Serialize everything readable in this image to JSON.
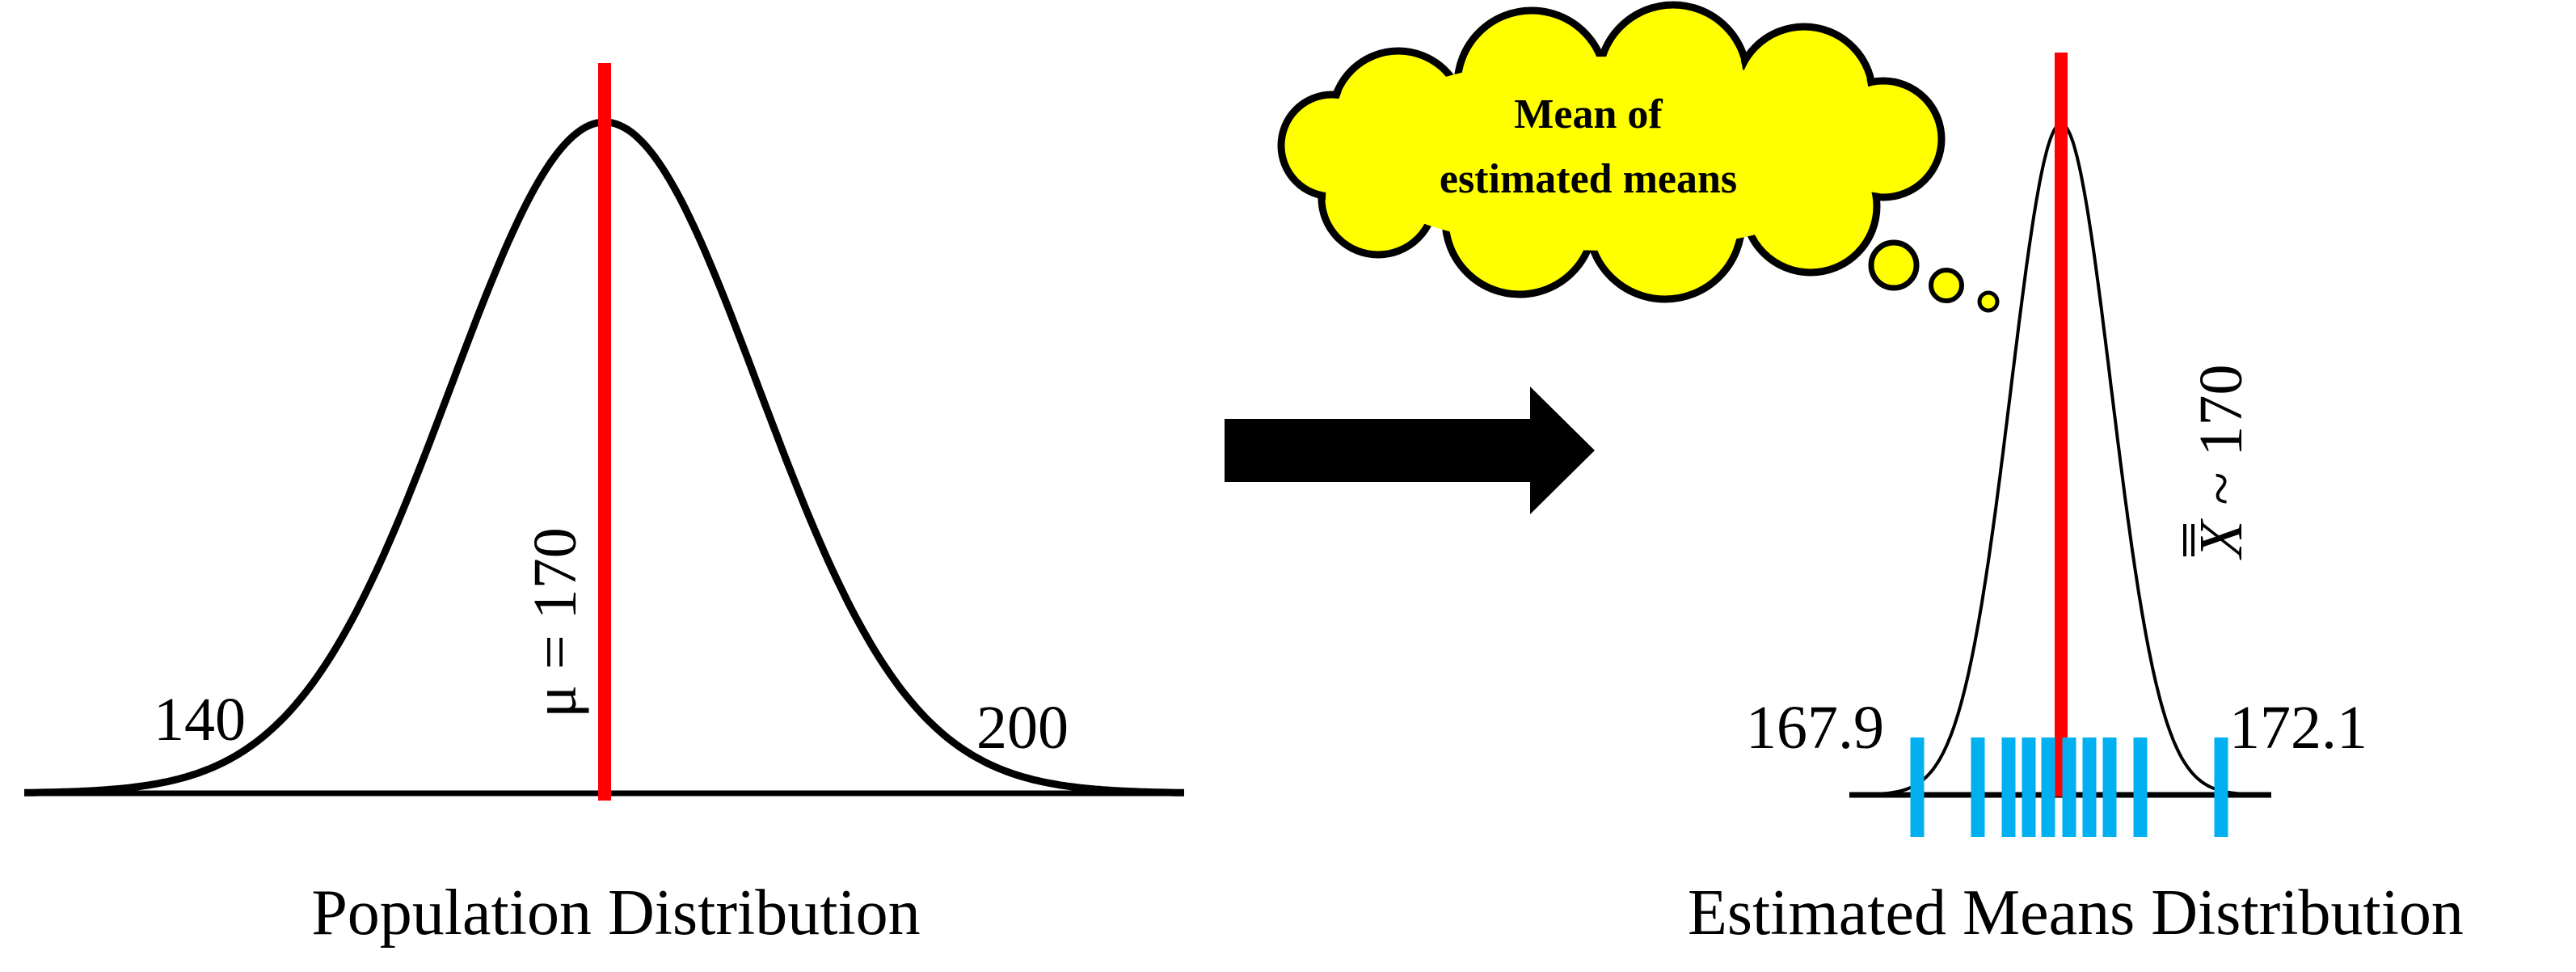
{
  "left_panel": {
    "caption": "Population Distribution",
    "mean_label": "μ = 170",
    "tick_left": "140",
    "tick_right": "200",
    "mean_value": 170,
    "left_value": 140,
    "right_value": 200
  },
  "arrow": {
    "direction": "right",
    "icon": "right-arrow"
  },
  "right_panel": {
    "caption": "Estimated Means Distribution",
    "mean_label_x": "X",
    "mean_label_rest": " ~ 170",
    "tick_left": "167.9",
    "tick_right": "172.1",
    "estimated_means_count": 10
  },
  "thought_cloud": {
    "line1": "Mean of",
    "line2": "estimated means"
  },
  "colors": {
    "curve": "#000000",
    "mean_line": "#ff0000",
    "sample_ticks": "#00b0f0",
    "cloud_fill": "#ffff00",
    "cloud_stroke": "#000000"
  }
}
